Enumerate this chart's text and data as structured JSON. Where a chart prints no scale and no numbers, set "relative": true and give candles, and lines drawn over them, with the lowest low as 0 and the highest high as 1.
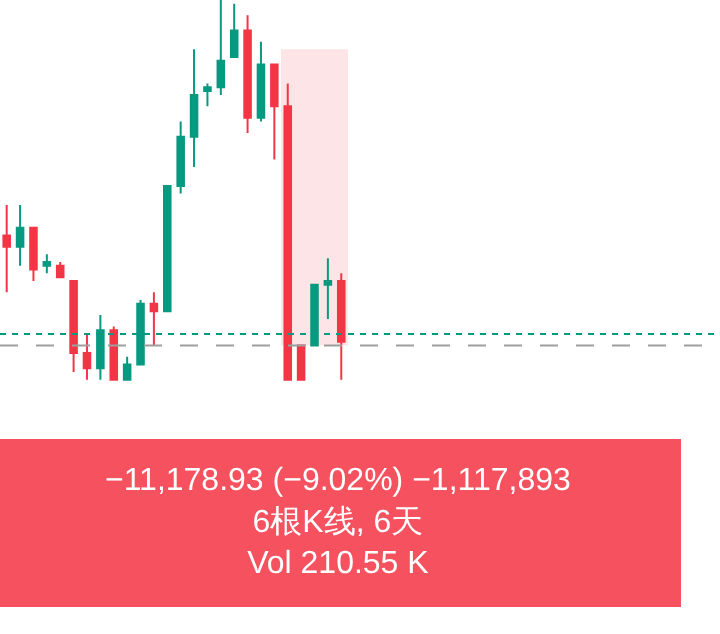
{
  "chart_data": {
    "type": "candlestick",
    "relative": true,
    "categories": [
      null,
      null,
      null,
      null,
      null,
      null,
      null,
      null,
      null,
      null,
      null,
      null,
      null,
      null,
      null,
      null,
      null,
      null,
      null,
      null,
      null,
      null,
      null,
      null,
      null,
      null
    ],
    "ohlc": [
      [
        0.38,
        0.46,
        0.23,
        0.35
      ],
      [
        0.35,
        0.46,
        0.3,
        0.4
      ],
      [
        0.4,
        0.4,
        0.26,
        0.29
      ],
      [
        0.3,
        0.33,
        0.28,
        0.31
      ],
      [
        0.3,
        0.31,
        0.27,
        0.27
      ],
      [
        0.26,
        0.26,
        0.02,
        0.07
      ],
      [
        0.07,
        0.12,
        0,
        0.03
      ],
      [
        0.03,
        0.17,
        0,
        0.13
      ],
      [
        0.13,
        0.14,
        0,
        0
      ],
      [
        0,
        0.06,
        0,
        0.04
      ],
      [
        0.04,
        0.21,
        0.04,
        0.2
      ],
      [
        0.2,
        0.23,
        0.09,
        0.18
      ],
      [
        0.18,
        0.51,
        0.18,
        0.51
      ],
      [
        0.51,
        0.68,
        0.49,
        0.64
      ],
      [
        0.64,
        0.87,
        0.56,
        0.75
      ],
      [
        0.76,
        0.78,
        0.72,
        0.77
      ],
      [
        0.77,
        1,
        0.75,
        0.84
      ],
      [
        0.85,
        0.99,
        0.85,
        0.92
      ],
      [
        0.92,
        0.96,
        0.65,
        0.69
      ],
      [
        0.69,
        0.89,
        0.68,
        0.83
      ],
      [
        0.83,
        0.83,
        0.58,
        0.72
      ],
      [
        0.72,
        0.78,
        0,
        0
      ],
      [
        0.09,
        0.09,
        0,
        0
      ],
      [
        0.09,
        0.25,
        0.09,
        0.25
      ],
      [
        0.25,
        0.32,
        0.16,
        0.26
      ],
      [
        0.26,
        0.28,
        0,
        0.1
      ]
    ],
    "colors": [
      "#f23645",
      "#089981",
      "#f23645",
      "#089981",
      "#f23645",
      "#f23645",
      "#f23645",
      "#089981",
      "#f23645",
      "#089981",
      "#089981",
      "#f23645",
      "#089981",
      "#089981",
      "#089981",
      "#089981",
      "#089981",
      "#089981",
      "#f23645",
      "#089981",
      "#f23645",
      "#f23645",
      "#f23645",
      "#089981",
      "#089981",
      "#f23645"
    ],
    "bands": [
      {
        "axis": "y",
        "from": 0.09,
        "to": 0.87,
        "color": "#fddde0"
      }
    ],
    "ref_lines": [
      {
        "axis": "y",
        "value": 0.09,
        "color": "#9e9e9e",
        "line_style": "dashed"
      },
      {
        "axis": "y",
        "value": 0.12,
        "color": "#089981",
        "line_style": "dotted"
      }
    ],
    "annotations": [
      "−11,178.93 (−9.02%) −1,117,893",
      "6根K线, 6天",
      "Vol 210.55 K"
    ]
  }
}
